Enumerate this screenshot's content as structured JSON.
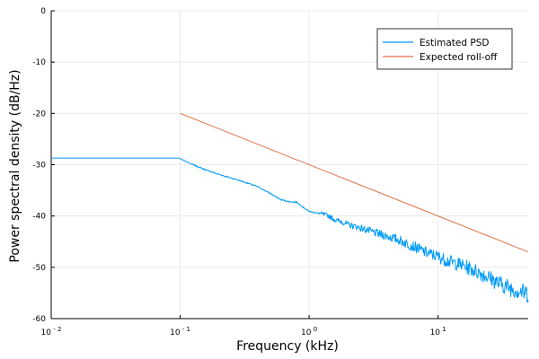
{
  "chart_data": {
    "type": "line",
    "xlabel": "Frequency (kHz)",
    "ylabel": "Power spectral density (dB/Hz)",
    "x_scale": "log",
    "xlim": [
      0.01,
      50
    ],
    "ylim": [
      -60,
      0
    ],
    "x_ticks": [
      {
        "value": 0.01,
        "base": "10",
        "exp": "- 2"
      },
      {
        "value": 0.1,
        "base": "10",
        "exp": "- 1"
      },
      {
        "value": 1,
        "base": "10",
        "exp": "0"
      },
      {
        "value": 10,
        "base": "10",
        "exp": "1"
      }
    ],
    "y_ticks": [
      0,
      -10,
      -20,
      -30,
      -40,
      -50,
      -60
    ],
    "grid": true,
    "legend_position": "top-right",
    "series": [
      {
        "name": "Estimated PSD",
        "color": "#009AF9",
        "x": [
          0.01,
          0.02,
          0.05,
          0.098,
          0.12,
          0.15,
          0.2,
          0.3,
          0.4,
          0.5,
          0.6,
          0.7,
          0.8,
          0.9,
          1.0,
          1.2,
          1.4,
          1.6,
          1.8,
          2.0,
          2.5,
          3.0,
          3.5,
          4.0,
          5.0,
          6.0,
          7.0,
          8.0,
          10.0,
          12.0,
          15.0,
          20.0,
          25.0,
          30.0,
          40.0,
          50.0
        ],
        "y": [
          -28.7,
          -28.7,
          -28.7,
          -28.7,
          -29.8,
          -30.8,
          -31.9,
          -33.2,
          -34.3,
          -35.6,
          -36.8,
          -37.2,
          -37.3,
          -38.3,
          -39.1,
          -39.5,
          -39.9,
          -40.8,
          -41.1,
          -41.7,
          -42.3,
          -43.0,
          -43.5,
          -43.9,
          -44.7,
          -45.6,
          -46.3,
          -47.1,
          -47.9,
          -48.8,
          -49.5,
          -50.8,
          -52.0,
          -53.2,
          -54.4,
          -55.2
        ],
        "noise_from_x": 1.2
      },
      {
        "name": "Expected roll-off",
        "color": "#E26F46",
        "x": [
          0.1,
          50
        ],
        "y": [
          -20,
          -47.0
        ]
      }
    ]
  }
}
